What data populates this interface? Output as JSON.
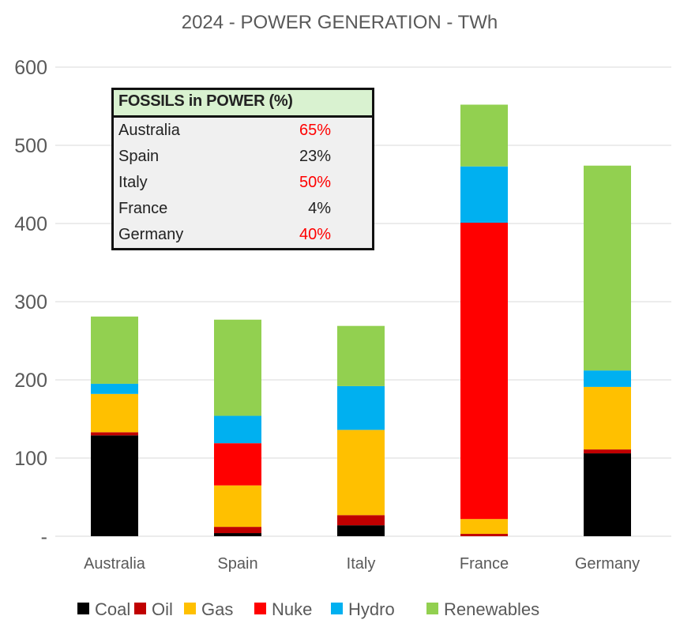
{
  "chart_data": {
    "type": "bar",
    "stacked": true,
    "title": "2024 - POWER GENERATION - TWh",
    "xlabel": "",
    "ylabel": "",
    "ylim": [
      0,
      600
    ],
    "yticks": [
      0,
      100,
      200,
      300,
      400,
      500,
      600
    ],
    "ytick_labels": [
      "-",
      "100",
      "200",
      "300",
      "400",
      "500",
      "600"
    ],
    "grid": true,
    "legend_position": "bottom",
    "categories": [
      "Australia",
      "Spain",
      "Italy",
      "France",
      "Germany"
    ],
    "series": [
      {
        "name": "Coal",
        "color": "#000000",
        "values": [
          129,
          4,
          14,
          0,
          106
        ]
      },
      {
        "name": "Oil",
        "color": "#c00000",
        "values": [
          4,
          8,
          13,
          3,
          5
        ]
      },
      {
        "name": "Gas",
        "color": "#ffc000",
        "values": [
          49,
          53,
          109,
          19,
          80
        ]
      },
      {
        "name": "Nuke",
        "color": "#ff0000",
        "values": [
          0,
          54,
          0,
          379,
          0
        ]
      },
      {
        "name": "Hydro",
        "color": "#00b0f0",
        "values": [
          13,
          35,
          56,
          72,
          21
        ]
      },
      {
        "name": "Renewables",
        "color": "#92d050",
        "values": [
          86,
          123,
          77,
          79,
          262
        ]
      }
    ]
  },
  "table": {
    "title": "FOSSILS in POWER (%)",
    "rows": [
      {
        "label": "Australia",
        "value": "65%",
        "color": "#ff0000"
      },
      {
        "label": "Spain",
        "value": "23%",
        "color": "#222222"
      },
      {
        "label": "Italy",
        "value": "50%",
        "color": "#ff0000"
      },
      {
        "label": "France",
        "value": "4%",
        "color": "#222222"
      },
      {
        "label": "Germany",
        "value": "40%",
        "color": "#ff0000"
      }
    ]
  }
}
